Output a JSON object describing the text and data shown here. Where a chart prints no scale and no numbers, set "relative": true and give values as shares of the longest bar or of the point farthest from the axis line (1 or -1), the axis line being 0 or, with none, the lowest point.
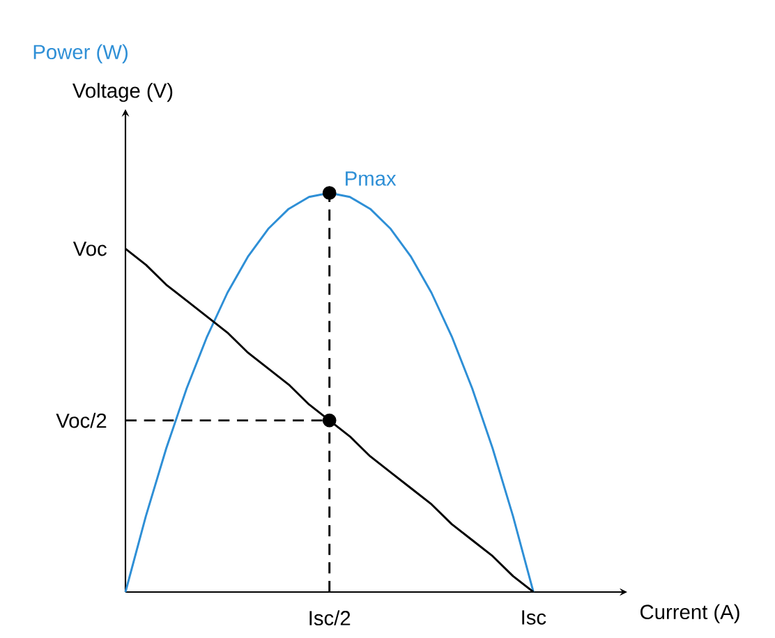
{
  "chart_data": {
    "type": "line",
    "xlabel": "Current (A)",
    "ylabel": "Voltage (V)",
    "relative": true,
    "categories": [
      null,
      null,
      null,
      null,
      null,
      null,
      null,
      null,
      null,
      null,
      "Isc/2",
      null,
      null,
      null,
      null,
      null,
      null,
      null,
      null,
      null,
      "Isc"
    ],
    "annotations": [
      {
        "text": "Pmax",
        "x": "Isc/2",
        "y": 1
      },
      "Voc",
      "Voc/2"
    ],
    "series": [
      {
        "name": "Power (W)",
        "color": "#2e8fd6",
        "values": [
          0,
          0.19,
          0.36,
          0.51,
          0.64,
          0.75,
          0.84,
          0.91,
          0.96,
          0.99,
          1,
          0.99,
          0.96,
          0.91,
          0.84,
          0.75,
          0.64,
          0.51,
          0.36,
          0.19,
          0
        ]
      },
      {
        "color": "#000000",
        "values": [
          0.86,
          0.82,
          0.77,
          0.73,
          0.69,
          0.65,
          0.6,
          0.56,
          0.52,
          0.47,
          0.43,
          0.39,
          0.34,
          0.3,
          0.26,
          0.22,
          0.17,
          0.13,
          0.09,
          0.04,
          0
        ]
      },
      {
        "color": "#000000",
        "line_style": "dashed",
        "x": [
          "Isc/2",
          "Isc/2"
        ],
        "values": [
          0,
          1
        ]
      },
      {
        "color": "#000000",
        "line_style": "dashed",
        "values": [
          0.43,
          0.43,
          0.43,
          0.43,
          0.43,
          0.43,
          0.43,
          0.43,
          0.43,
          0.43,
          0.43,
          null,
          null,
          null,
          null,
          null,
          null,
          null,
          null,
          null,
          null
        ]
      },
      {
        "type": "scatter",
        "marker": "circle",
        "color": "#000000",
        "x": [
          "Isc/2",
          "Isc/2"
        ],
        "values": [
          1,
          0.43
        ]
      }
    ]
  }
}
